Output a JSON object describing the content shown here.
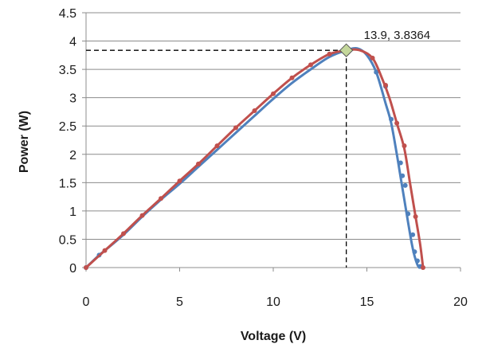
{
  "chart_data": {
    "type": "line",
    "title": "",
    "xlabel": "Voltage (V)",
    "ylabel": "Power (W)",
    "xlim": [
      0,
      20
    ],
    "ylim": [
      0,
      4.5
    ],
    "x_ticks": [
      "0",
      "5",
      "10",
      "15",
      "20"
    ],
    "y_ticks": [
      "0",
      "0.5",
      "1",
      "1.5",
      "2",
      "2.5",
      "3",
      "3.5",
      "4",
      "4.5"
    ],
    "grid": "horizontal",
    "series": [
      {
        "color": "#4f81bd",
        "points": [
          [
            0,
            0
          ],
          [
            0.7,
            0.22
          ],
          [
            1,
            0.3
          ],
          [
            2,
            0.58
          ],
          [
            3,
            0.9
          ],
          [
            4,
            1.2
          ],
          [
            5,
            1.48
          ],
          [
            6,
            1.78
          ],
          [
            7,
            2.08
          ],
          [
            8,
            2.38
          ],
          [
            9,
            2.68
          ],
          [
            10,
            2.98
          ],
          [
            11,
            3.26
          ],
          [
            12,
            3.5
          ],
          [
            13,
            3.72
          ],
          [
            13.9,
            3.8364
          ],
          [
            14.5,
            3.87
          ],
          [
            15,
            3.75
          ],
          [
            15.5,
            3.45
          ],
          [
            16,
            2.9
          ],
          [
            16.3,
            2.55
          ],
          [
            16.6,
            2.0
          ],
          [
            16.8,
            1.6
          ],
          [
            17,
            1.2
          ],
          [
            17.2,
            0.8
          ],
          [
            17.4,
            0.42
          ],
          [
            17.55,
            0.2
          ],
          [
            17.7,
            0.05
          ],
          [
            17.8,
            0
          ]
        ],
        "markers": [
          [
            0,
            0
          ],
          [
            0.7,
            0.22
          ],
          [
            15.5,
            3.45
          ],
          [
            16,
            3.2
          ],
          [
            16.3,
            2.62
          ],
          [
            16.8,
            1.85
          ],
          [
            16.9,
            1.62
          ],
          [
            17.05,
            1.45
          ],
          [
            17.2,
            0.95
          ],
          [
            17.45,
            0.58
          ],
          [
            17.55,
            0.28
          ],
          [
            17.7,
            0.12
          ],
          [
            17.85,
            0.02
          ]
        ]
      },
      {
        "color": "#c0504d",
        "points": [
          [
            0,
            0
          ],
          [
            1,
            0.3
          ],
          [
            2,
            0.6
          ],
          [
            3,
            0.92
          ],
          [
            4,
            1.22
          ],
          [
            5,
            1.53
          ],
          [
            6,
            1.83
          ],
          [
            7,
            2.15
          ],
          [
            8,
            2.47
          ],
          [
            9,
            2.77
          ],
          [
            10,
            3.07
          ],
          [
            11,
            3.35
          ],
          [
            12,
            3.58
          ],
          [
            13,
            3.77
          ],
          [
            13.9,
            3.8364
          ],
          [
            14.6,
            3.84
          ],
          [
            15.3,
            3.7
          ],
          [
            15.8,
            3.35
          ],
          [
            16.2,
            3.0
          ],
          [
            16.6,
            2.55
          ],
          [
            17,
            2.1
          ],
          [
            17.3,
            1.5
          ],
          [
            17.6,
            0.9
          ],
          [
            17.85,
            0.4
          ],
          [
            18,
            0
          ]
        ],
        "markers": [
          [
            0,
            0
          ],
          [
            1,
            0.3
          ],
          [
            2,
            0.6
          ],
          [
            3,
            0.92
          ],
          [
            4,
            1.22
          ],
          [
            5,
            1.53
          ],
          [
            6,
            1.83
          ],
          [
            7,
            2.15
          ],
          [
            8,
            2.47
          ],
          [
            9,
            2.77
          ],
          [
            10,
            3.07
          ],
          [
            11,
            3.35
          ],
          [
            12,
            3.58
          ],
          [
            13,
            3.77
          ],
          [
            15.3,
            3.7
          ],
          [
            16,
            3.22
          ],
          [
            16.6,
            2.55
          ],
          [
            17,
            2.15
          ],
          [
            17.6,
            0.9
          ],
          [
            18,
            0
          ]
        ]
      }
    ],
    "annotations": [
      {
        "type": "max-point",
        "x": 13.9,
        "y": 3.8364,
        "label": "13.9, 3.8364",
        "marker_color": "#c4d79b"
      }
    ]
  }
}
